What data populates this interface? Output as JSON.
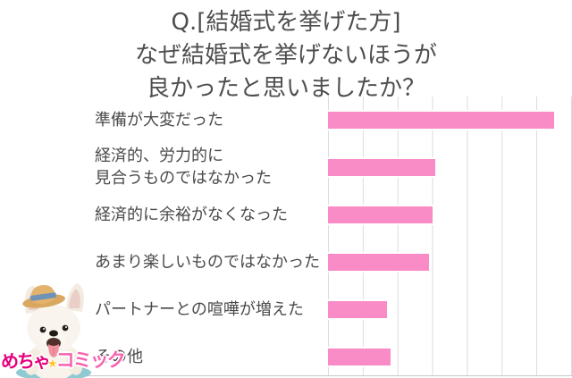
{
  "title": {
    "lines": [
      "Q.[結婚式を挙げた方]",
      "なぜ結婚式を挙げないほうが",
      "良かったと思いましたか？"
    ]
  },
  "chart_data": {
    "type": "bar",
    "orientation": "horizontal",
    "title": "Q.[結婚式を挙げた方] なぜ結婚式を挙げないほうが良かったと思いましたか？",
    "categories": [
      "準備が大変だった",
      "経済的、労力的に見合うものではなかった",
      "経済的に余裕がなくなった",
      "あまり楽しいものではなかった",
      "パートナーとの喧嘩が増えた",
      "その他"
    ],
    "category_display_lines": [
      [
        "準備が大変だった"
      ],
      [
        "経済的、労力的に",
        "見合うものではなかった"
      ],
      [
        "経済的に余裕がなくなった"
      ],
      [
        "あまり楽しいものではなかった"
      ],
      [
        "パートナーとの喧嘩が増えた"
      ],
      [
        "その他"
      ]
    ],
    "values": [
      65,
      31,
      30,
      29,
      17,
      18
    ],
    "values_note": "estimated from unlabeled gridlines, 10 per interval",
    "xlim": [
      0,
      70
    ],
    "gridline_interval": 10,
    "grid": true,
    "legend": "none",
    "data_labels": false,
    "value_axis_labels_visible": false,
    "bar_color": "#F98CC6",
    "gridline_color": "#DCDCDC",
    "axis_line_color": "#C9C9C9",
    "text_color": "#4A4A4A"
  },
  "branding": {
    "logo_part_1": "めちゃ",
    "logo_part_2": "コミック",
    "logo_star_icon": "star",
    "logo_color_1": "#E4007E",
    "logo_color_2": "#F763B0",
    "mascot": "white-french-bulldog-with-straw-hat"
  }
}
